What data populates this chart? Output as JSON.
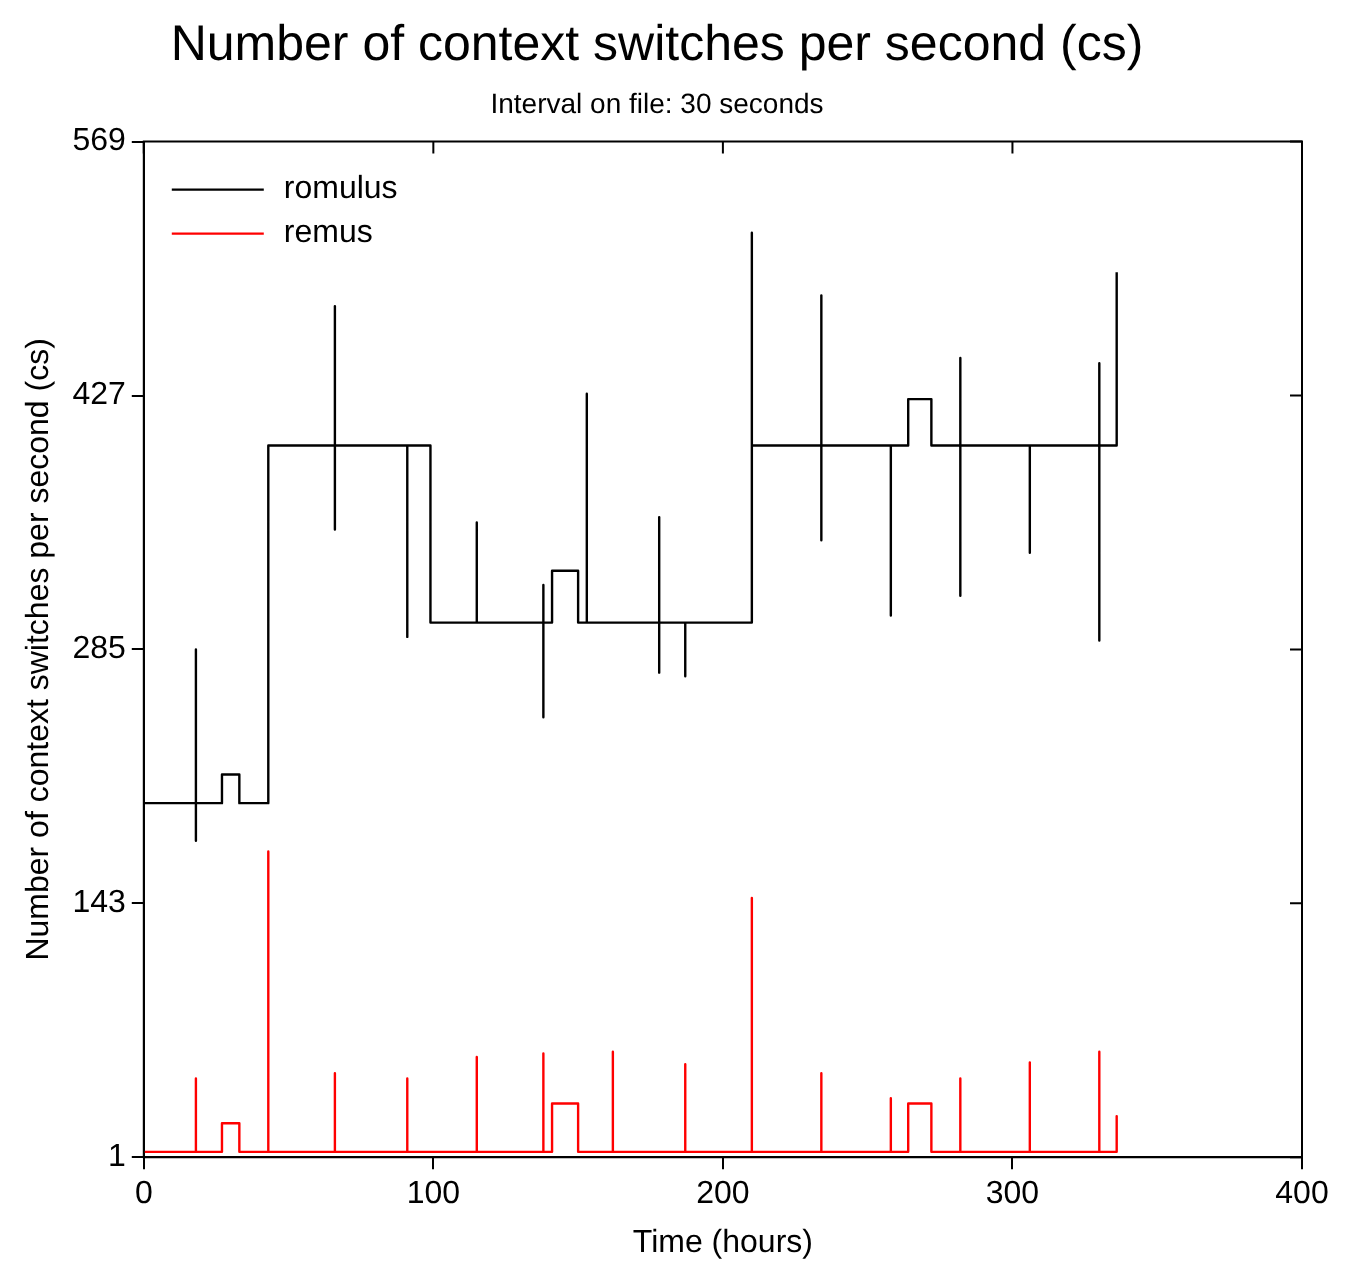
{
  "chart_data": {
    "type": "line",
    "title": "Number of context switches per second (cs)",
    "subtitle": "Interval on file: 30 seconds",
    "xlabel": "Time (hours)",
    "ylabel": "Number of context switches per second (cs)",
    "xlim": [
      0,
      400
    ],
    "xticks": [
      0,
      100,
      200,
      300,
      400
    ],
    "ylim": [
      1,
      569
    ],
    "yticks": [
      1,
      143,
      285,
      427,
      569
    ],
    "grid": false,
    "legend": "top left",
    "marker": "none",
    "line_style": "solid",
    "series": [
      {
        "name": "romulus",
        "color": "#000000",
        "x": [
          0,
          18,
          18,
          18,
          18,
          27,
          27,
          33,
          33,
          43,
          43,
          66,
          66,
          66,
          66,
          91,
          91,
          91,
          99,
          99,
          115,
          115,
          115,
          138,
          138,
          138,
          138,
          141,
          141,
          150,
          150,
          153,
          153,
          153,
          178,
          178,
          178,
          178,
          187,
          187,
          187,
          210,
          210,
          210,
          234,
          234,
          234,
          234,
          258,
          258,
          258,
          264,
          264,
          272,
          272,
          282,
          282,
          282,
          282,
          306,
          306,
          306,
          330,
          330,
          330,
          330,
          336,
          336
        ],
        "values": [
          199,
          199,
          285,
          178,
          199,
          199,
          215,
          215,
          199,
          199,
          399,
          399,
          477,
          352,
          399,
          399,
          292,
          399,
          399,
          300,
          300,
          356,
          300,
          300,
          321,
          247,
          300,
          300,
          329,
          329,
          300,
          300,
          428,
          300,
          300,
          359,
          272,
          300,
          300,
          270,
          300,
          300,
          518,
          399,
          399,
          483,
          346,
          399,
          399,
          304,
          399,
          399,
          425,
          425,
          399,
          399,
          448,
          315,
          399,
          399,
          339,
          399,
          399,
          445,
          290,
          399,
          399,
          496
        ]
      },
      {
        "name": "remus",
        "color": "#ff0000",
        "x": [
          0,
          18,
          18,
          18,
          27,
          27,
          33,
          33,
          43,
          43,
          43,
          66,
          66,
          66,
          91,
          91,
          91,
          115,
          115,
          115,
          138,
          138,
          138,
          141,
          141,
          150,
          150,
          162,
          162,
          162,
          187,
          187,
          187,
          210,
          210,
          210,
          234,
          234,
          234,
          258,
          258,
          258,
          264,
          264,
          272,
          272,
          282,
          282,
          282,
          306,
          306,
          306,
          330,
          330,
          330,
          336,
          336,
          336
        ],
        "values": [
          4,
          4,
          45,
          4,
          4,
          20,
          20,
          4,
          4,
          172,
          4,
          4,
          48,
          4,
          4,
          45,
          4,
          4,
          57,
          4,
          4,
          59,
          4,
          4,
          31,
          31,
          4,
          4,
          60,
          4,
          4,
          53,
          4,
          4,
          146,
          4,
          4,
          48,
          4,
          4,
          34,
          4,
          4,
          31,
          31,
          4,
          4,
          45,
          4,
          4,
          54,
          4,
          4,
          60,
          4,
          4,
          24,
          4
        ]
      }
    ]
  }
}
